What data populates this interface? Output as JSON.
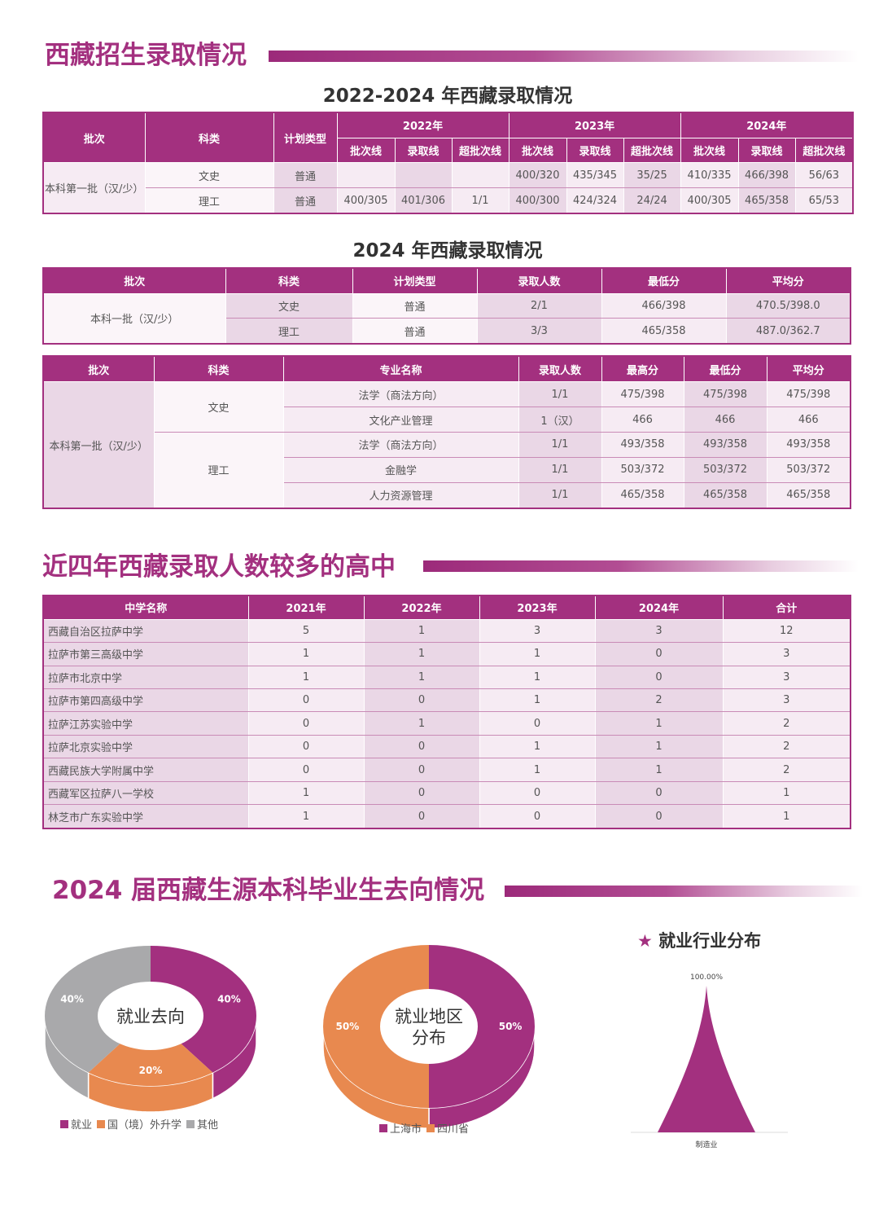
{
  "section1": {
    "title": "西藏招生录取情况"
  },
  "table1": {
    "title": "2022-2024 年西藏录取情况",
    "headers": [
      "批次",
      "科类",
      "计划类型"
    ],
    "years": [
      "2022年",
      "2023年",
      "2024年"
    ],
    "sub": [
      "批次线",
      "录取线",
      "超批次线"
    ],
    "batch": "本科第一批（汉/少）",
    "rows": [
      {
        "type": "文史",
        "plan": "普通",
        "values": [
          "",
          "",
          "",
          "400/320",
          "435/345",
          "35/25",
          "410/335",
          "466/398",
          "56/63"
        ]
      },
      {
        "type": "理工",
        "plan": "普通",
        "values": [
          "400/305",
          "401/306",
          "1/1",
          "400/300",
          "424/324",
          "24/24",
          "400/305",
          "465/358",
          "65/53"
        ]
      }
    ]
  },
  "table2": {
    "title": "2024 年西藏录取情况",
    "headers": [
      "批次",
      "科类",
      "计划类型",
      "录取人数",
      "最低分",
      "平均分"
    ],
    "batch": "本科一批（汉/少）",
    "rows": [
      [
        "文史",
        "普通",
        "2/1",
        "466/398",
        "470.5/398.0"
      ],
      [
        "理工",
        "普通",
        "3/3",
        "465/358",
        "487.0/362.7"
      ]
    ]
  },
  "table3": {
    "headers": [
      "批次",
      "科类",
      "专业名称",
      "录取人数",
      "最高分",
      "最低分",
      "平均分"
    ],
    "batch": "本科第一批（汉/少）",
    "groups": [
      {
        "type": "文史",
        "rows": [
          [
            "法学（商法方向）",
            "1/1",
            "475/398",
            "475/398",
            "475/398"
          ],
          [
            "文化产业管理",
            "1（汉）",
            "466",
            "466",
            "466"
          ]
        ]
      },
      {
        "type": "理工",
        "rows": [
          [
            "法学（商法方向）",
            "1/1",
            "493/358",
            "493/358",
            "493/358"
          ],
          [
            "金融学",
            "1/1",
            "503/372",
            "503/372",
            "503/372"
          ],
          [
            "人力资源管理",
            "1/1",
            "465/358",
            "465/358",
            "465/358"
          ]
        ]
      }
    ]
  },
  "section2": {
    "title": "近四年西藏录取人数较多的高中"
  },
  "table4": {
    "headers": [
      "中学名称",
      "2021年",
      "2022年",
      "2023年",
      "2024年",
      "合计"
    ],
    "rows": [
      [
        "西藏自治区拉萨中学",
        "5",
        "1",
        "3",
        "3",
        "12"
      ],
      [
        "拉萨市第三高级中学",
        "1",
        "1",
        "1",
        "0",
        "3"
      ],
      [
        "拉萨市北京中学",
        "1",
        "1",
        "1",
        "0",
        "3"
      ],
      [
        "拉萨市第四高级中学",
        "0",
        "0",
        "1",
        "2",
        "3"
      ],
      [
        "拉萨江苏实验中学",
        "0",
        "1",
        "0",
        "1",
        "2"
      ],
      [
        "拉萨北京实验中学",
        "0",
        "0",
        "1",
        "1",
        "2"
      ],
      [
        "西藏民族大学附属中学",
        "0",
        "0",
        "1",
        "1",
        "2"
      ],
      [
        "西藏军区拉萨八一学校",
        "1",
        "0",
        "0",
        "0",
        "1"
      ],
      [
        "林芝市广东实验中学",
        "1",
        "0",
        "0",
        "0",
        "1"
      ]
    ]
  },
  "section3": {
    "title": "2024 届西藏生源本科毕业生去向情况"
  },
  "chart_data": [
    {
      "type": "pie",
      "title": "就业去向",
      "slices": [
        {
          "name": "就业",
          "value": 40,
          "label": "40%",
          "color": "#a3307f"
        },
        {
          "name": "国（境）外升学",
          "value": 20,
          "label": "20%",
          "color": "#e8894f"
        },
        {
          "name": "其他",
          "value": 40,
          "label": "40%",
          "color": "#a9a9ab"
        }
      ]
    },
    {
      "type": "pie",
      "title": "就业地区分布",
      "title_lines": [
        "就业地区",
        "分布"
      ],
      "slices": [
        {
          "name": "上海市",
          "value": 50,
          "label": "50%",
          "color": "#a3307f"
        },
        {
          "name": "四川省",
          "value": 50,
          "label": "50%",
          "color": "#e8894f"
        }
      ]
    },
    {
      "type": "area",
      "title": "就业行业分布",
      "star": "★",
      "categories": [
        "制造业"
      ],
      "values": [
        100
      ],
      "value_label": "100.00%",
      "color": "#a3307f"
    }
  ]
}
